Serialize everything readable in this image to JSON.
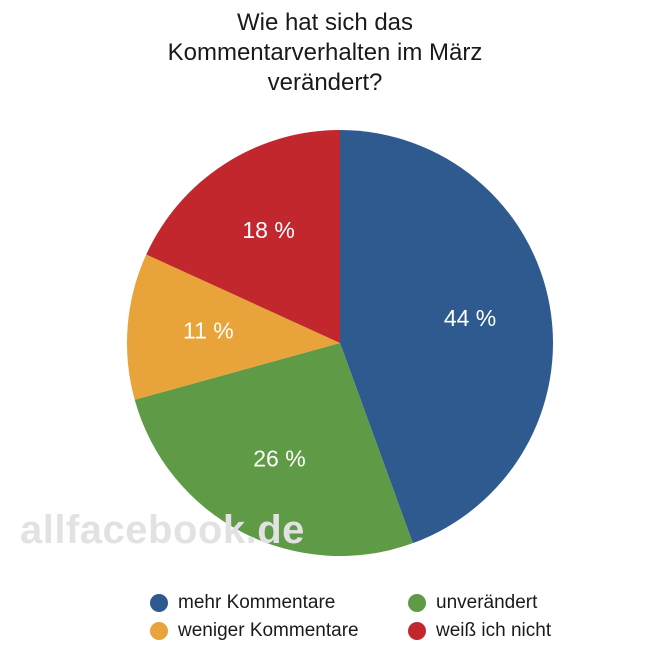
{
  "chart_data": {
    "type": "pie",
    "title_lines": [
      "Wie hat sich das",
      "Kommentarverhalten im März",
      "verändert?"
    ],
    "slices": [
      {
        "label": "mehr Kommentare",
        "value": 44,
        "value_label": "44 %",
        "color": "#2e5a8f"
      },
      {
        "label": "unverändert",
        "value": 26,
        "value_label": "26 %",
        "color": "#5f9a47"
      },
      {
        "label": "weniger Kommentare",
        "value": 11,
        "value_label": "11 %",
        "color": "#e8a33b"
      },
      {
        "label": "weiß ich nicht",
        "value": 18,
        "value_label": "18 %",
        "color": "#c1272d"
      }
    ],
    "start": "12 o'clock",
    "direction": "clockwise",
    "legend_placement": "bottom"
  },
  "watermark": "allfacebook.de"
}
